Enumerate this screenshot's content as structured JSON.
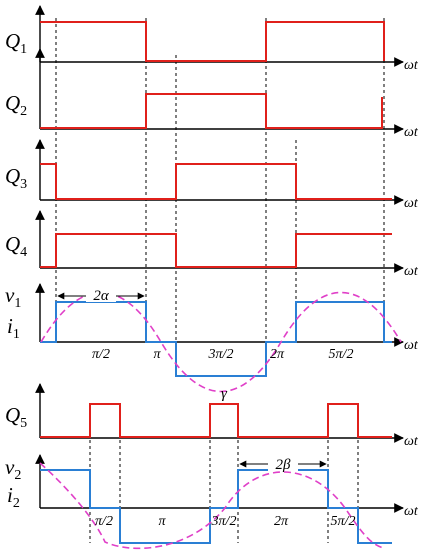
{
  "colors": {
    "gate_signal": "#e0201b",
    "voltage": "#2a7fd4",
    "current": "#e040c8",
    "axis": "#000000",
    "guide": "#000000"
  },
  "axis_label": "ωt",
  "panels": [
    {
      "id": "Q1",
      "label": {
        "main": "Q",
        "sub": "1"
      }
    },
    {
      "id": "Q2",
      "label": {
        "main": "Q",
        "sub": "2"
      }
    },
    {
      "id": "Q3",
      "label": {
        "main": "Q",
        "sub": "3"
      }
    },
    {
      "id": "Q4",
      "label": {
        "main": "Q",
        "sub": "4"
      }
    },
    {
      "id": "V1",
      "label": {
        "main": "v",
        "sub": "1"
      },
      "label2": {
        "main": "i",
        "sub": "1"
      },
      "annotations": {
        "width": "2α"
      },
      "ticks": [
        "π/2",
        "π",
        "3π/2",
        "2π",
        "5π/2"
      ]
    },
    {
      "id": "Q5",
      "label": {
        "main": "Q",
        "sub": "5"
      },
      "annotations": {
        "gamma": "γ"
      }
    },
    {
      "id": "V2",
      "label": {
        "main": "v",
        "sub": "2"
      },
      "label2": {
        "main": "i",
        "sub": "2"
      },
      "annotations": {
        "width": "2β"
      },
      "ticks": [
        "π/2",
        "π",
        "3π/2",
        "2π",
        "5π/2"
      ]
    }
  ]
}
